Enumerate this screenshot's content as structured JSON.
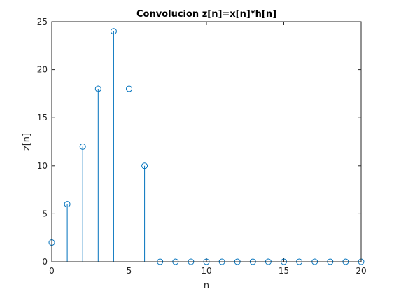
{
  "chart_data": {
    "type": "stem",
    "title": "Convolucion z[n]=x[n]*h[n]",
    "xlabel": "n",
    "ylabel": "z[n]",
    "xlim": [
      0,
      20
    ],
    "ylim": [
      0,
      25
    ],
    "xticks": [
      0,
      5,
      10,
      15,
      20
    ],
    "yticks": [
      0,
      5,
      10,
      15,
      20,
      25
    ],
    "grid": false,
    "x": [
      0,
      1,
      2,
      3,
      4,
      5,
      6,
      7,
      8,
      9,
      10,
      11,
      12,
      13,
      14,
      15,
      16,
      17,
      18,
      19,
      20
    ],
    "values": [
      2,
      6,
      12,
      18,
      24,
      18,
      10,
      0,
      0,
      0,
      0,
      0,
      0,
      0,
      0,
      0,
      0,
      0,
      0,
      0,
      0
    ],
    "color": "#0072bd"
  }
}
